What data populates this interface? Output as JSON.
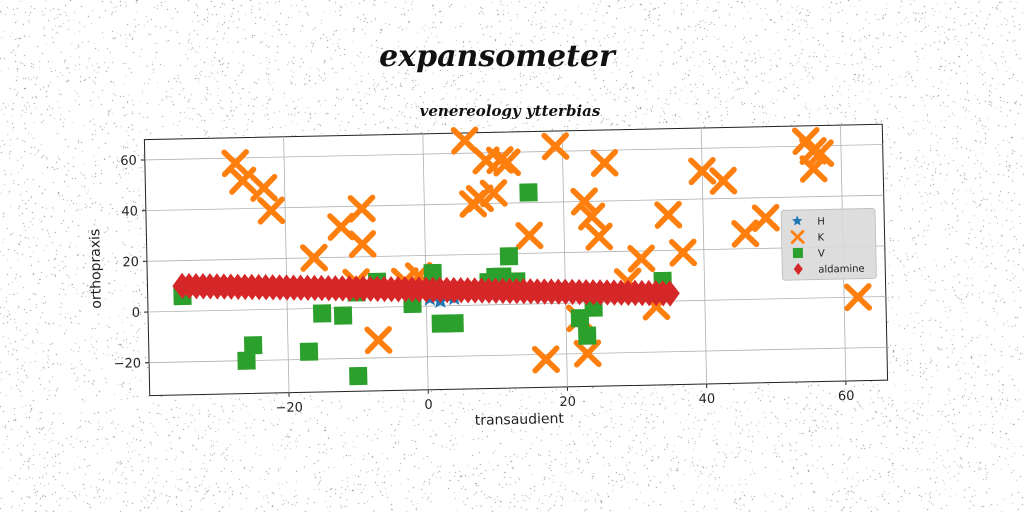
{
  "chart_data": {
    "type": "scatter",
    "title": "expansometer",
    "subtitle": "venereology ytterbias",
    "xlabel": "transaudient",
    "ylabel": "orthopraxis",
    "xlim": [
      -40,
      66
    ],
    "ylim": [
      -33,
      68
    ],
    "xticks": [
      -20,
      0,
      20,
      40,
      60
    ],
    "yticks": [
      -20,
      0,
      20,
      40,
      60
    ],
    "grid": true,
    "legend_position": "center-right",
    "series": [
      {
        "name": "H",
        "marker": "star",
        "color": "#1f77b4",
        "x": [
          0.5,
          2.0,
          3.0,
          4.0
        ],
        "y": [
          3,
          2,
          4,
          3
        ]
      },
      {
        "name": "K",
        "marker": "x",
        "color": "#ff7f0e",
        "x": [
          -27,
          -26,
          -23,
          -22,
          -16,
          -12,
          -9,
          -9,
          -10,
          -7,
          -3,
          -1,
          6,
          7,
          8,
          9,
          10,
          11,
          12,
          15,
          17,
          19,
          22,
          23,
          23,
          24,
          25,
          26,
          29,
          31,
          33,
          35,
          37,
          40,
          43,
          46,
          49,
          55,
          56,
          56,
          57,
          62
        ],
        "y": [
          58,
          51,
          48,
          39,
          20,
          32,
          39,
          25,
          10,
          -13,
          10,
          12,
          65,
          40,
          42,
          57,
          44,
          57,
          56,
          27,
          -22,
          62,
          -6,
          -20,
          40,
          34,
          26,
          55,
          8,
          17,
          -2,
          34,
          19,
          51,
          47,
          26,
          32,
          62,
          58,
          51,
          57,
          0
        ]
      },
      {
        "name": "V",
        "marker": "square",
        "color": "#2ca02c",
        "x": [
          -35,
          -26,
          -25,
          -17,
          -15,
          -12,
          -10,
          -10,
          -7,
          -2,
          1,
          2,
          4,
          9,
          10,
          11,
          12,
          13,
          15,
          22,
          23,
          23,
          24,
          34
        ],
        "y": [
          6,
          -20,
          -14,
          -17,
          -2,
          -3,
          -27,
          6,
          10,
          1,
          13,
          -7,
          -7,
          9,
          11,
          11,
          19,
          9,
          44,
          -6,
          -13,
          4,
          -2,
          8
        ]
      },
      {
        "name": "aldamine",
        "marker": "diamond",
        "color": "#d62728",
        "x": [
          -35,
          -34,
          -33,
          -32,
          -31,
          -30,
          -29,
          -28,
          -27,
          -26,
          -25,
          -24,
          -23,
          -22,
          -21,
          -20,
          -19,
          -18,
          -17,
          -16,
          -15,
          -14,
          -13,
          -12,
          -11,
          -10,
          -9,
          -8,
          -7,
          -6,
          -5,
          -4,
          -3,
          -2,
          -1,
          0,
          1,
          2,
          3,
          4,
          5,
          6,
          7,
          8,
          9,
          10,
          11,
          12,
          13,
          14,
          15,
          16,
          17,
          18,
          19,
          20,
          21,
          22,
          23,
          24,
          25,
          26,
          27,
          28,
          29,
          30,
          31,
          32,
          33,
          34,
          35
        ],
        "y": [
          10.0,
          9.9,
          9.8,
          9.7,
          9.6,
          9.5,
          9.4,
          9.3,
          9.2,
          9.1,
          9.0,
          8.9,
          8.8,
          8.7,
          8.6,
          8.5,
          8.4,
          8.3,
          8.2,
          8.1,
          8.0,
          7.9,
          7.8,
          7.7,
          7.6,
          7.5,
          7.4,
          7.3,
          7.2,
          7.1,
          7.0,
          6.9,
          6.8,
          6.7,
          6.6,
          6.5,
          6.4,
          6.3,
          6.2,
          6.1,
          6.0,
          5.9,
          5.8,
          5.7,
          5.6,
          5.5,
          5.4,
          5.3,
          5.2,
          5.1,
          5.0,
          4.9,
          4.8,
          4.7,
          4.6,
          4.5,
          4.4,
          4.3,
          4.2,
          4.1,
          4.0,
          3.9,
          3.8,
          3.7,
          3.6,
          3.5,
          3.4,
          3.3,
          3.2,
          3.1,
          3.0
        ]
      }
    ]
  }
}
